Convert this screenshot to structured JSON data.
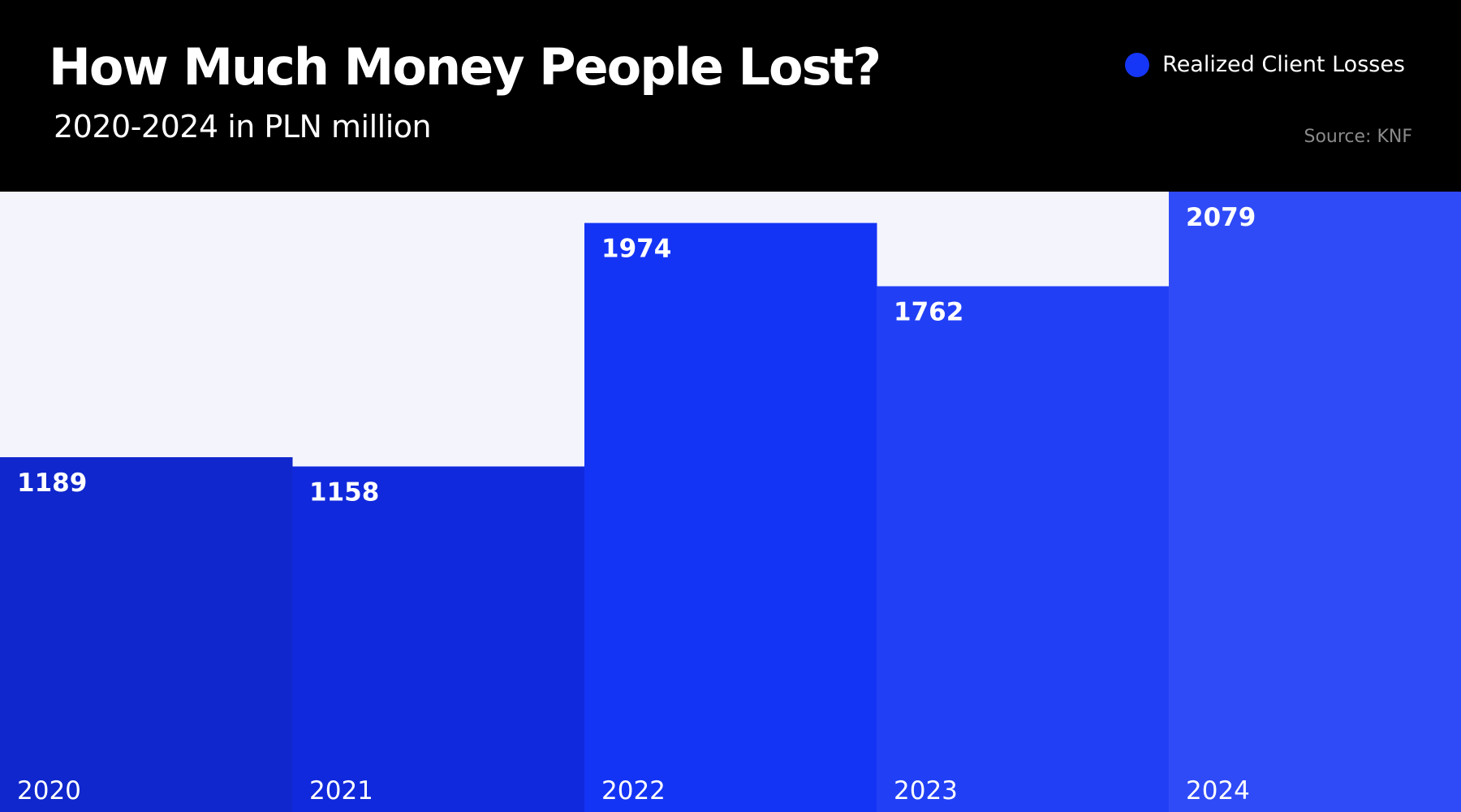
{
  "header": {
    "title": "How Much Money People Lost?",
    "subtitle": "2020-2024 in PLN million",
    "source": "Source: KNF"
  },
  "legend": {
    "label": "Realized Client Losses",
    "color": "#1536f6"
  },
  "colors": {
    "header_background": "#000000",
    "plot_background": "#f4f5fc",
    "bar_colors": [
      "#0f27cc",
      "#1129dc",
      "#1434f5",
      "#2140f6",
      "#2f4bf7"
    ]
  },
  "chart_data": {
    "type": "bar",
    "categories": [
      "2020",
      "2021",
      "2022",
      "2023",
      "2024"
    ],
    "values": [
      1189,
      1158,
      1974,
      1762,
      2079
    ],
    "title": "How Much Money People Lost?",
    "subtitle": "2020-2024 in PLN million",
    "series": [
      {
        "name": "Realized Client Losses",
        "values": [
          1189,
          1158,
          1974,
          1762,
          2079
        ]
      }
    ],
    "ylim": [
      0,
      2079
    ],
    "grid": false,
    "legend_position": "top-right"
  }
}
